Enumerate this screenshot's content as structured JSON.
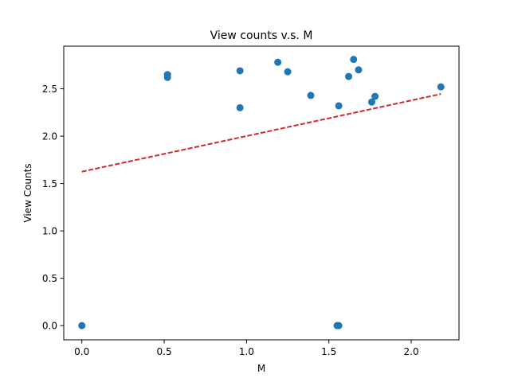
{
  "chart_data": {
    "type": "scatter",
    "title": "View counts v.s. M",
    "xlabel": "M",
    "ylabel": "View Counts",
    "xlim": [
      -0.11,
      2.29
    ],
    "ylim": [
      -0.15,
      2.95
    ],
    "xticks": [
      0.0,
      0.5,
      1.0,
      1.5,
      2.0
    ],
    "xtick_labels": [
      "0.0",
      "0.5",
      "1.0",
      "1.5",
      "2.0"
    ],
    "yticks": [
      0.0,
      0.5,
      1.0,
      1.5,
      2.0,
      2.5
    ],
    "ytick_labels": [
      "0.0",
      "0.5",
      "1.0",
      "1.5",
      "2.0",
      "2.5"
    ],
    "grid": false,
    "point_color": "#1f77b4",
    "trend_color": "#d62728",
    "points": [
      {
        "x": 0.0,
        "y": 0.0
      },
      {
        "x": 0.52,
        "y": 2.65
      },
      {
        "x": 0.52,
        "y": 2.62
      },
      {
        "x": 0.96,
        "y": 2.69
      },
      {
        "x": 0.96,
        "y": 2.3
      },
      {
        "x": 1.19,
        "y": 2.78
      },
      {
        "x": 1.25,
        "y": 2.68
      },
      {
        "x": 1.39,
        "y": 2.43
      },
      {
        "x": 1.55,
        "y": 0.0
      },
      {
        "x": 1.56,
        "y": 0.0
      },
      {
        "x": 1.56,
        "y": 2.32
      },
      {
        "x": 1.62,
        "y": 2.63
      },
      {
        "x": 1.65,
        "y": 2.81
      },
      {
        "x": 1.68,
        "y": 2.7
      },
      {
        "x": 1.76,
        "y": 2.36
      },
      {
        "x": 1.78,
        "y": 2.42
      },
      {
        "x": 2.18,
        "y": 2.52
      }
    ],
    "trendline": {
      "x": [
        0.0,
        2.18
      ],
      "y": [
        1.625,
        2.445
      ],
      "style": "dashed"
    }
  }
}
